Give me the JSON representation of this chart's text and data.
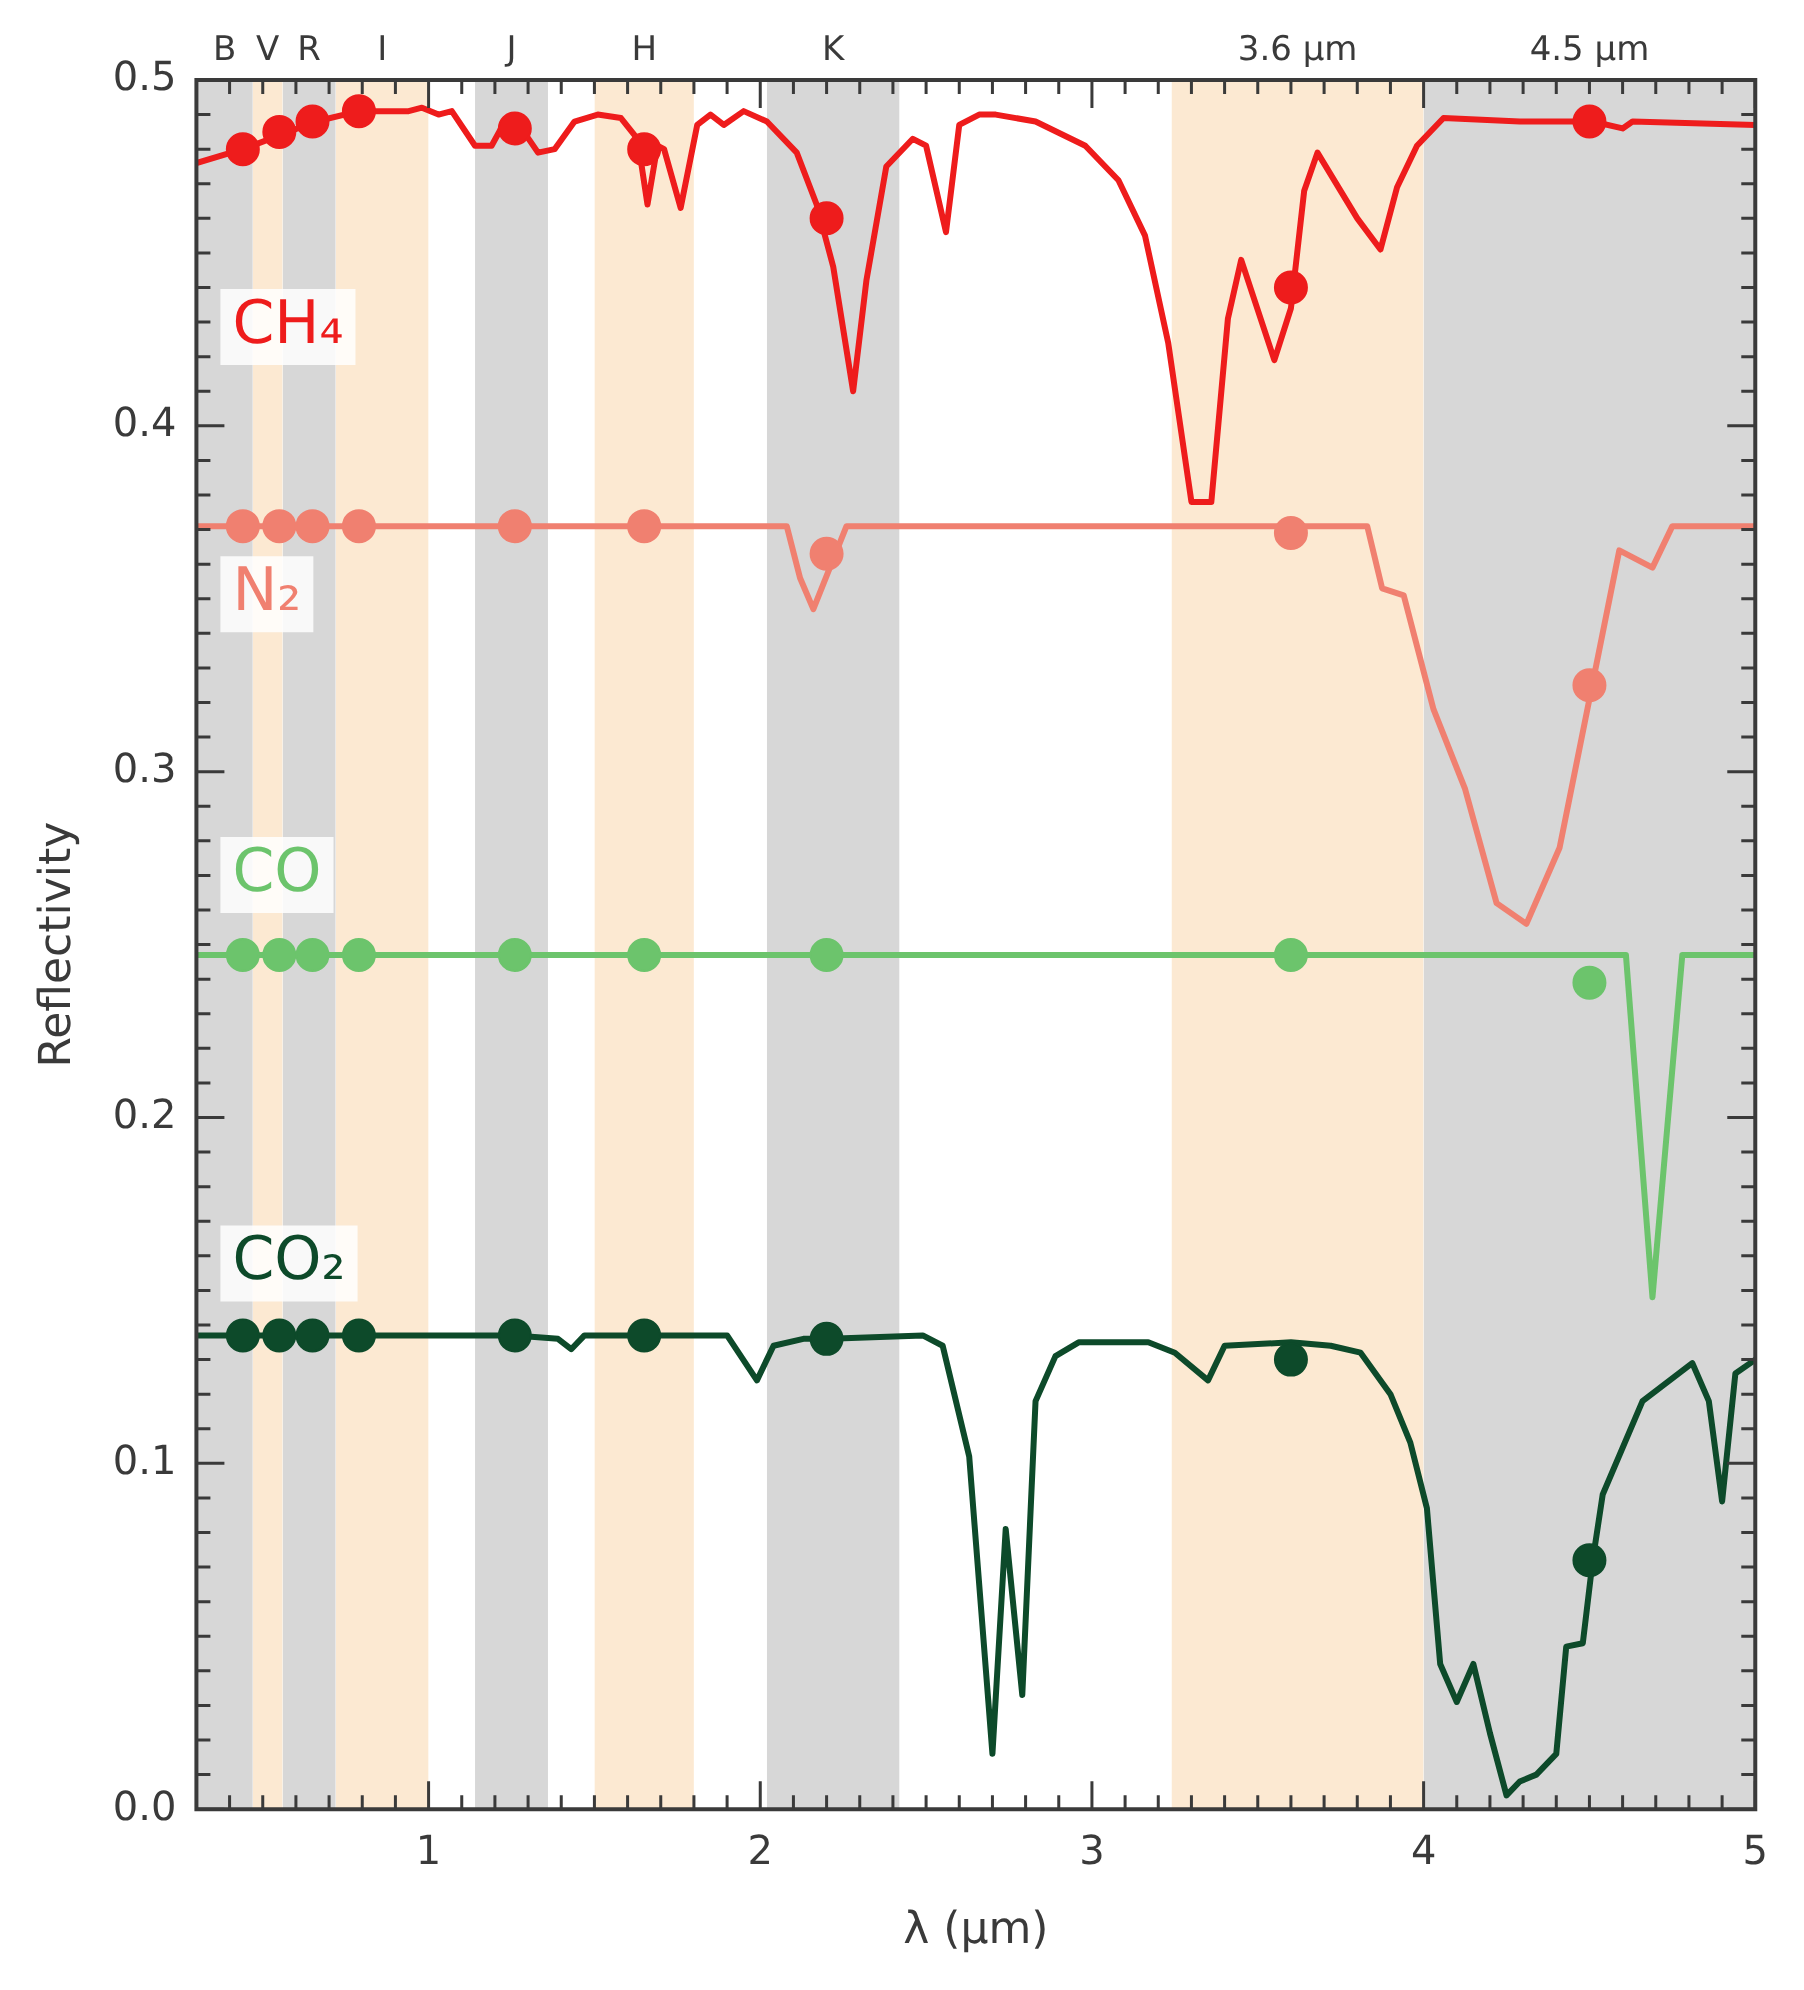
{
  "chart_data": {
    "type": "line",
    "xlabel": "λ (μm)",
    "ylabel": "Reflectivity",
    "xlim": [
      0.3,
      5
    ],
    "ylim": [
      0,
      0.5
    ],
    "grid": false,
    "legend": false,
    "marker": "none",
    "xticks": [
      {
        "value": 0.4,
        "label": null
      },
      {
        "value": 0.5,
        "label": null
      },
      {
        "value": 0.6,
        "label": null
      },
      {
        "value": 0.7,
        "label": null
      },
      {
        "value": 0.8,
        "label": null
      },
      {
        "value": 0.9,
        "label": null
      },
      1,
      {
        "value": 1.1,
        "label": null
      },
      {
        "value": 1.2,
        "label": null
      },
      {
        "value": 1.3,
        "label": null
      },
      {
        "value": 1.4,
        "label": null
      },
      {
        "value": 1.5,
        "label": null
      },
      {
        "value": 1.6,
        "label": null
      },
      {
        "value": 1.7,
        "label": null
      },
      {
        "value": 1.8,
        "label": null
      },
      {
        "value": 1.9,
        "label": null
      },
      2,
      {
        "value": 2.1,
        "label": null
      },
      {
        "value": 2.2,
        "label": null
      },
      {
        "value": 2.3,
        "label": null
      },
      {
        "value": 2.4,
        "label": null
      },
      {
        "value": 2.5,
        "label": null
      },
      {
        "value": 2.6,
        "label": null
      },
      {
        "value": 2.7,
        "label": null
      },
      {
        "value": 2.8,
        "label": null
      },
      {
        "value": 2.9,
        "label": null
      },
      3,
      {
        "value": 3.1,
        "label": null
      },
      {
        "value": 3.2,
        "label": null
      },
      {
        "value": 3.3,
        "label": null
      },
      {
        "value": 3.4,
        "label": null
      },
      {
        "value": 3.5,
        "label": null
      },
      {
        "value": 3.6,
        "label": null
      },
      {
        "value": 3.7,
        "label": null
      },
      {
        "value": 3.8,
        "label": null
      },
      {
        "value": 3.9,
        "label": null
      },
      4,
      {
        "value": 4.1,
        "label": null
      },
      {
        "value": 4.2,
        "label": null
      },
      {
        "value": 4.3,
        "label": null
      },
      {
        "value": 4.4,
        "label": null
      },
      {
        "value": 4.5,
        "label": null
      },
      {
        "value": 4.6,
        "label": null
      },
      {
        "value": 4.7,
        "label": null
      },
      {
        "value": 4.8,
        "label": null
      },
      {
        "value": 4.9,
        "label": null
      },
      5
    ],
    "yticks": [
      {
        "value": 0,
        "label": "0.0"
      },
      {
        "value": 0.01,
        "label": null
      },
      {
        "value": 0.02,
        "label": null
      },
      {
        "value": 0.03,
        "label": null
      },
      {
        "value": 0.04,
        "label": null
      },
      {
        "value": 0.05,
        "label": null
      },
      {
        "value": 0.06,
        "label": null
      },
      {
        "value": 0.07,
        "label": null
      },
      {
        "value": 0.08,
        "label": null
      },
      {
        "value": 0.09,
        "label": null
      },
      {
        "value": 0.1,
        "label": "0.1"
      },
      {
        "value": 0.11,
        "label": null
      },
      {
        "value": 0.12,
        "label": null
      },
      {
        "value": 0.13,
        "label": null
      },
      {
        "value": 0.14,
        "label": null
      },
      {
        "value": 0.15,
        "label": null
      },
      {
        "value": 0.16,
        "label": null
      },
      {
        "value": 0.17,
        "label": null
      },
      {
        "value": 0.18,
        "label": null
      },
      {
        "value": 0.19,
        "label": null
      },
      {
        "value": 0.2,
        "label": "0.2"
      },
      {
        "value": 0.21,
        "label": null
      },
      {
        "value": 0.22,
        "label": null
      },
      {
        "value": 0.23,
        "label": null
      },
      {
        "value": 0.24,
        "label": null
      },
      {
        "value": 0.25,
        "label": null
      },
      {
        "value": 0.26,
        "label": null
      },
      {
        "value": 0.27,
        "label": null
      },
      {
        "value": 0.28,
        "label": null
      },
      {
        "value": 0.29,
        "label": null
      },
      {
        "value": 0.3,
        "label": "0.3"
      },
      {
        "value": 0.31,
        "label": null
      },
      {
        "value": 0.32,
        "label": null
      },
      {
        "value": 0.33,
        "label": null
      },
      {
        "value": 0.34,
        "label": null
      },
      {
        "value": 0.35,
        "label": null
      },
      {
        "value": 0.36,
        "label": null
      },
      {
        "value": 0.37,
        "label": null
      },
      {
        "value": 0.38,
        "label": null
      },
      {
        "value": 0.39,
        "label": null
      },
      {
        "value": 0.4,
        "label": "0.4"
      },
      {
        "value": 0.41,
        "label": null
      },
      {
        "value": 0.42,
        "label": null
      },
      {
        "value": 0.43,
        "label": null
      },
      {
        "value": 0.44,
        "label": null
      },
      {
        "value": 0.45,
        "label": null
      },
      {
        "value": 0.46,
        "label": null
      },
      {
        "value": 0.47,
        "label": null
      },
      {
        "value": 0.48,
        "label": null
      },
      {
        "value": 0.49,
        "label": null
      },
      {
        "value": 0.5,
        "label": "0.5"
      }
    ],
    "bands": [
      {
        "axis": "x",
        "from": 0.3,
        "to": 0.47,
        "label": "B",
        "color": "#8c8c8c"
      },
      {
        "axis": "x",
        "from": 0.47,
        "to": 0.56,
        "label": "V",
        "color": "#f7c98e"
      },
      {
        "axis": "x",
        "from": 0.56,
        "to": 0.72,
        "label": "R",
        "color": "#8c8c8c"
      },
      {
        "axis": "x",
        "from": 0.72,
        "to": 1.0,
        "label": "I",
        "color": "#f7c98e"
      },
      {
        "axis": "x",
        "from": 1.14,
        "to": 1.36,
        "label": "J",
        "color": "#8c8c8c"
      },
      {
        "axis": "x",
        "from": 1.5,
        "to": 1.8,
        "label": "H",
        "color": "#f7c98e"
      },
      {
        "axis": "x",
        "from": 2.02,
        "to": 2.42,
        "label": "K",
        "color": "#8c8c8c"
      },
      {
        "axis": "x",
        "from": 3.24,
        "to": 4.0,
        "label": "3.6 μm",
        "color": "#f7c98e"
      },
      {
        "axis": "x",
        "from": 4.0,
        "to": 5.0,
        "label": "4.5 μm",
        "color": "#8c8c8c"
      }
    ],
    "series": [
      {
        "name": "CH₄",
        "color": "#ee1c1c",
        "x": [
          0.3,
          0.44,
          0.66,
          0.79,
          0.94,
          0.98,
          1.03,
          1.07,
          1.14,
          1.19,
          1.23,
          1.28,
          1.33,
          1.38,
          1.44,
          1.51,
          1.58,
          1.63,
          1.66,
          1.69,
          1.71,
          1.76,
          1.81,
          1.85,
          1.89,
          1.95,
          2.02,
          2.11,
          2.17,
          2.22,
          2.28,
          2.32,
          2.38,
          2.46,
          2.5,
          2.56,
          2.6,
          2.66,
          2.71,
          2.83,
          2.98,
          3.08,
          3.16,
          3.23,
          3.3,
          3.36,
          3.41,
          3.45,
          3.55,
          3.6,
          3.64,
          3.68,
          3.8,
          3.87,
          3.92,
          3.98,
          4.06,
          4.29,
          4.51,
          4.6,
          4.63,
          5.0
        ],
        "values": [
          0.476,
          0.48,
          0.488,
          0.491,
          0.491,
          0.492,
          0.49,
          0.491,
          0.481,
          0.481,
          0.488,
          0.486,
          0.479,
          0.48,
          0.488,
          0.49,
          0.489,
          0.483,
          0.464,
          0.481,
          0.48,
          0.463,
          0.487,
          0.49,
          0.487,
          0.491,
          0.488,
          0.479,
          0.464,
          0.446,
          0.41,
          0.442,
          0.475,
          0.483,
          0.481,
          0.456,
          0.487,
          0.49,
          0.49,
          0.488,
          0.481,
          0.471,
          0.455,
          0.424,
          0.378,
          0.378,
          0.431,
          0.448,
          0.419,
          0.434,
          0.468,
          0.479,
          0.46,
          0.451,
          0.469,
          0.481,
          0.489,
          0.488,
          0.488,
          0.486,
          0.488,
          0.487
        ]
      },
      {
        "name": "N₂",
        "color": "#f08070",
        "x": [
          0.3,
          2.08,
          2.12,
          2.16,
          2.26,
          3.83,
          3.875,
          3.94,
          4.03,
          4.125,
          4.22,
          4.31,
          4.41,
          4.59,
          4.69,
          4.75,
          5.0
        ],
        "values": [
          0.371,
          0.371,
          0.356,
          0.347,
          0.371,
          0.371,
          0.353,
          0.351,
          0.318,
          0.295,
          0.262,
          0.256,
          0.278,
          0.364,
          0.359,
          0.371,
          0.371
        ]
      },
      {
        "name": "CO",
        "color": "#6cc46c",
        "x": [
          0.3,
          4.61,
          4.69,
          4.78,
          5.0
        ],
        "values": [
          0.247,
          0.247,
          0.148,
          0.247,
          0.247
        ]
      },
      {
        "name": "CO₂",
        "color": "#0d4a2a",
        "x": [
          0.3,
          1.26,
          1.39,
          1.43,
          1.47,
          1.9,
          1.99,
          2.04,
          2.13,
          2.21,
          2.49,
          2.55,
          2.63,
          2.7,
          2.74,
          2.79,
          2.83,
          2.89,
          2.96,
          3.17,
          3.25,
          3.35,
          3.4,
          3.6,
          3.72,
          3.81,
          3.9,
          3.96,
          4.01,
          4.05,
          4.1,
          4.15,
          4.2,
          4.25,
          4.29,
          4.34,
          4.4,
          4.43,
          4.48,
          4.51,
          4.54,
          4.66,
          4.81,
          4.86,
          4.9,
          4.94,
          5.0
        ],
        "values": [
          0.137,
          0.137,
          0.136,
          0.133,
          0.137,
          0.137,
          0.124,
          0.134,
          0.136,
          0.136,
          0.137,
          0.134,
          0.102,
          0.016,
          0.081,
          0.033,
          0.118,
          0.131,
          0.135,
          0.135,
          0.132,
          0.124,
          0.134,
          0.135,
          0.134,
          0.132,
          0.12,
          0.106,
          0.087,
          0.042,
          0.031,
          0.042,
          0.022,
          0.004,
          0.008,
          0.01,
          0.016,
          0.047,
          0.048,
          0.072,
          0.091,
          0.118,
          0.129,
          0.118,
          0.089,
          0.126,
          0.13
        ]
      },
      {
        "type": "scatter",
        "marker": "circle",
        "color": "#ee1c1c",
        "x": [
          0.44,
          0.55,
          0.65,
          0.79,
          1.26,
          1.65,
          2.2,
          3.6,
          4.5
        ],
        "values": [
          0.48,
          0.485,
          0.488,
          0.491,
          0.486,
          0.48,
          0.46,
          0.44,
          0.488
        ]
      },
      {
        "type": "scatter",
        "marker": "circle",
        "color": "#f08070",
        "x": [
          0.44,
          0.55,
          0.65,
          0.79,
          1.26,
          1.65,
          2.2,
          3.6,
          4.5
        ],
        "values": [
          0.371,
          0.371,
          0.371,
          0.371,
          0.371,
          0.371,
          0.363,
          0.369,
          0.325
        ]
      },
      {
        "type": "scatter",
        "marker": "circle",
        "color": "#6cc46c",
        "x": [
          0.44,
          0.55,
          0.65,
          0.79,
          1.26,
          1.65,
          2.2,
          3.6,
          4.5
        ],
        "values": [
          0.247,
          0.247,
          0.247,
          0.247,
          0.247,
          0.247,
          0.247,
          0.247,
          0.239
        ]
      },
      {
        "type": "scatter",
        "marker": "circle",
        "color": "#0d4a2a",
        "x": [
          0.44,
          0.55,
          0.65,
          0.79,
          1.26,
          1.65,
          2.2,
          3.6,
          4.5
        ],
        "values": [
          0.137,
          0.137,
          0.137,
          0.137,
          0.137,
          0.137,
          0.136,
          0.13,
          0.072
        ]
      }
    ]
  }
}
